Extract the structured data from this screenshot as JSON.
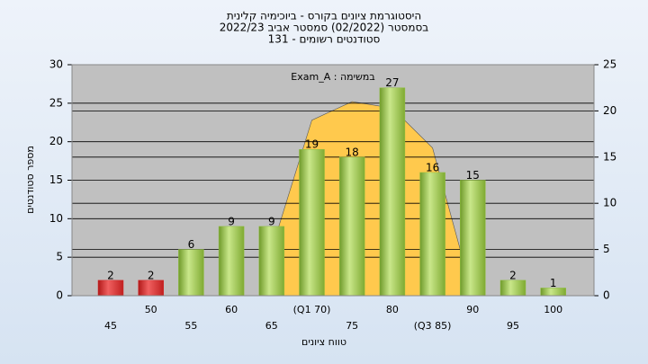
{
  "chart_data": {
    "type": "bar",
    "title_lines": [
      "היסטוגרמת ציונים בקורס - ביוכימיה קלינית",
      "בסמסטר  (02/2022)  סמסטר אביב 2022/23",
      "סטודנטים רשומים - 131"
    ],
    "annotation": "במשימה : Exam_A",
    "x_label": "טווח ציונים",
    "y_label": "מספר סטודנטים",
    "categories": [
      "45",
      "50",
      "55",
      "60",
      "65",
      "(Q1 70)",
      "75",
      "80",
      "(Q3 85)",
      "90",
      "95",
      "100"
    ],
    "values": [
      2,
      2,
      6,
      9,
      9,
      19,
      18,
      27,
      16,
      15,
      2,
      1
    ],
    "colors": [
      "#d42a2a",
      "#d42a2a",
      "#8fbf3f",
      "#8fbf3f",
      "#8fbf3f",
      "#8fbf3f",
      "#8fbf3f",
      "#8fbf3f",
      "#8fbf3f",
      "#8fbf3f",
      "#8fbf3f",
      "#8fbf3f"
    ],
    "area": {
      "axis": "y2",
      "color": "#ffc94d",
      "values": [
        null,
        null,
        null,
        null,
        5,
        19,
        21,
        20.3,
        16,
        0,
        null,
        null
      ]
    },
    "ylim": [
      0,
      30
    ],
    "yticks": [
      0,
      5,
      10,
      15,
      20,
      25,
      30
    ],
    "y2lim": [
      0,
      25
    ],
    "y2ticks": [
      0,
      5,
      10,
      15,
      20,
      25
    ],
    "grid": true
  }
}
